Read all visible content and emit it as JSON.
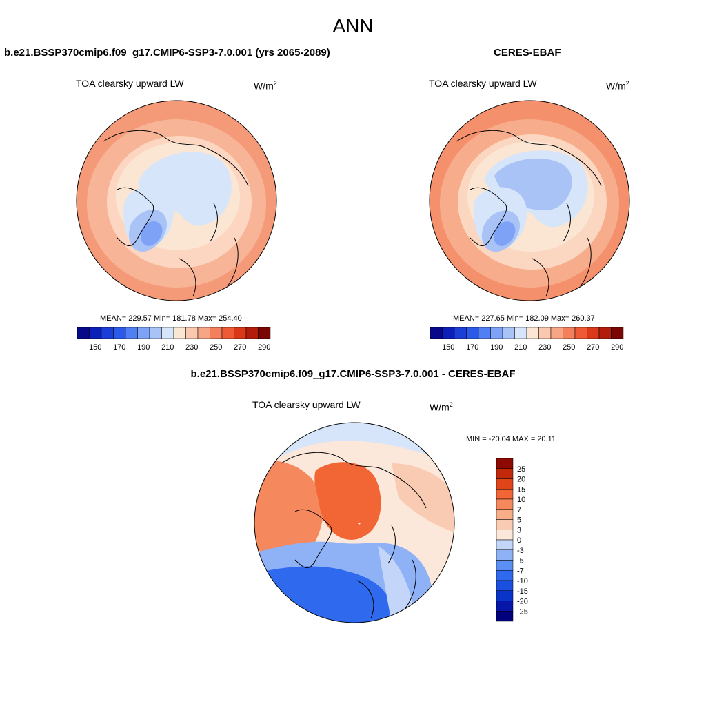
{
  "figure": {
    "title": "ANN"
  },
  "panels": [
    {
      "title": "b.e21.BSSP370cmip6.f09_g17.CMIP6-SSP3-7.0.001 (yrs 2065-2089)",
      "variable": "TOA clearsky upward LW",
      "units_base": "W/m",
      "units_exp": "2",
      "stats": "MEAN= 229.57  Min= 181.78  Max= 254.40",
      "stats_values": {
        "mean": 229.57,
        "min": 181.78,
        "max": 254.4
      }
    },
    {
      "title": "CERES-EBAF",
      "variable": "TOA clearsky upward LW",
      "units_base": "W/m",
      "units_exp": "2",
      "stats": "MEAN= 227.65  Min= 182.09  Max= 260.37",
      "stats_values": {
        "mean": 227.65,
        "min": 182.09,
        "max": 260.37
      }
    },
    {
      "title": "b.e21.BSSP370cmip6.f09_g17.CMIP6-SSP3-7.0.001 - CERES-EBAF",
      "variable": "TOA clearsky upward LW",
      "units_base": "W/m",
      "units_exp": "2",
      "stats": "MIN = -20.04 MAX =  20.11",
      "stats_values": {
        "min": -20.04,
        "max": 20.11
      }
    }
  ],
  "colorbar_abs": {
    "colors": [
      "#08088a",
      "#0c1fb8",
      "#1a3ed6",
      "#2c5ae8",
      "#4f7ff2",
      "#7ea2f6",
      "#a9c3f7",
      "#d6e5fa",
      "#fbe6d4",
      "#f9c8ae",
      "#f6a585",
      "#f47f5c",
      "#ee5a35",
      "#d9381a",
      "#b21d0b",
      "#7a0603"
    ],
    "tick_labels": [
      "150",
      "170",
      "190",
      "210",
      "230",
      "250",
      "270",
      "290"
    ]
  },
  "colorbar_diff": {
    "colors": [
      "#02007a",
      "#0516a8",
      "#0a33c8",
      "#1a4fe0",
      "#2f6aee",
      "#5b8ff3",
      "#8fb1f6",
      "#c3d6f9",
      "#fbe8da",
      "#f9cbb3",
      "#f8ad89",
      "#f6885e",
      "#f26534",
      "#e0451a",
      "#c2290b",
      "#8e0902"
    ],
    "tick_labels": [
      "25",
      "20",
      "15",
      "10",
      "7",
      "5",
      "3",
      "0",
      "-3",
      "-5",
      "-7",
      "-10",
      "-15",
      "-20",
      "-25"
    ]
  }
}
